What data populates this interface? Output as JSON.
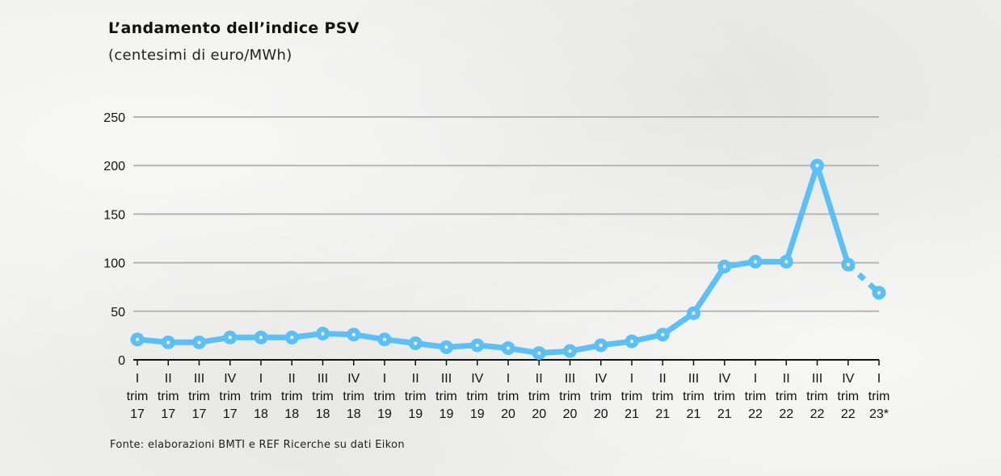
{
  "title": "L’andamento dell’indice PSV",
  "subtitle": "(centesimi di euro/MWh)",
  "source": "Fonte: elaborazioni BMTI e REF Ricerche su dati Eikon",
  "colors": {
    "line": "#5bc0f8",
    "grid": "#b5b5b5",
    "axis": "#111111",
    "marker_inner": "#ffffff"
  },
  "chart_data": {
    "type": "line",
    "title": "L’andamento dell’indice PSV",
    "subtitle": "(centesimi di euro/MWh)",
    "xlabel": "",
    "ylabel": "",
    "ylim": [
      0,
      250
    ],
    "yticks": [
      0,
      50,
      100,
      150,
      200,
      250
    ],
    "grid": true,
    "legend": "none",
    "categories": [
      [
        "I",
        "trim",
        "17"
      ],
      [
        "II",
        "trim",
        "17"
      ],
      [
        "III",
        "trim",
        "17"
      ],
      [
        "IV",
        "trim",
        "17"
      ],
      [
        "I",
        "trim",
        "18"
      ],
      [
        "II",
        "trim",
        "18"
      ],
      [
        "III",
        "trim",
        "18"
      ],
      [
        "IV",
        "trim",
        "18"
      ],
      [
        "I",
        "trim",
        "19"
      ],
      [
        "II",
        "trim",
        "19"
      ],
      [
        "III",
        "trim",
        "19"
      ],
      [
        "IV",
        "trim",
        "19"
      ],
      [
        "I",
        "trim",
        "20"
      ],
      [
        "II",
        "trim",
        "20"
      ],
      [
        "III",
        "trim",
        "20"
      ],
      [
        "IV",
        "trim",
        "20"
      ],
      [
        "I",
        "trim",
        "21"
      ],
      [
        "II",
        "trim",
        "21"
      ],
      [
        "III",
        "trim",
        "21"
      ],
      [
        "IV",
        "trim",
        "21"
      ],
      [
        "I",
        "trim",
        "22"
      ],
      [
        "II",
        "trim",
        "22"
      ],
      [
        "III",
        "trim",
        "22"
      ],
      [
        "IV",
        "trim",
        "22"
      ],
      [
        "I",
        "trim",
        "23*"
      ]
    ],
    "series": [
      {
        "values": [
          21,
          18,
          18,
          23,
          23,
          23,
          27,
          26,
          21,
          17,
          13,
          15,
          12,
          7,
          9,
          15,
          19,
          26,
          48,
          96,
          101,
          101,
          200,
          98,
          69
        ],
        "dashed_from_index": 23
      }
    ]
  }
}
